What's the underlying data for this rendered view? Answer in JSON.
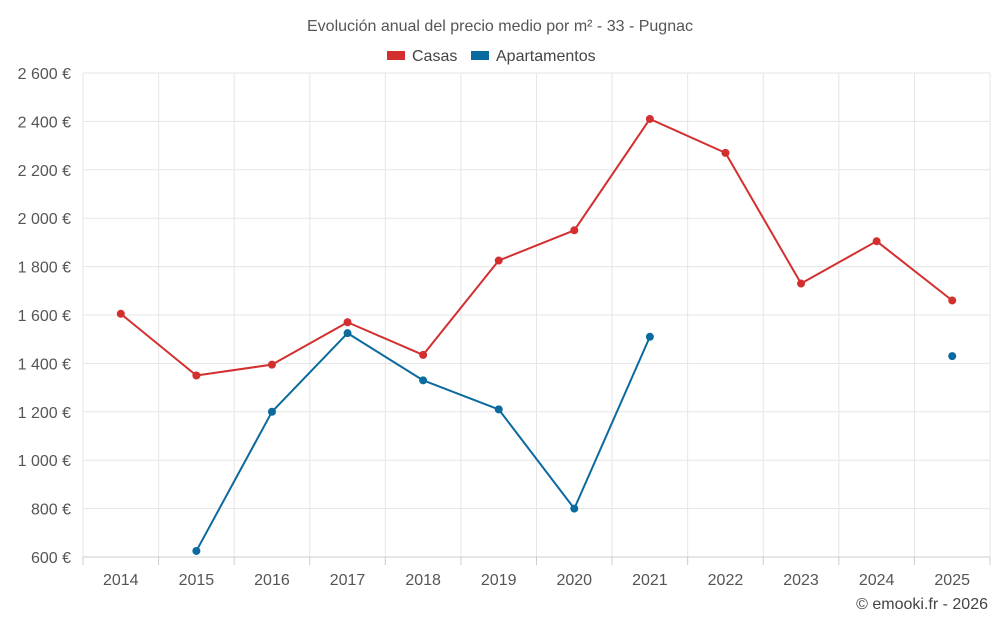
{
  "chart_data": {
    "type": "line",
    "title": "Evolución anual del precio medio por m² - 33 - Pugnac",
    "xlabel": "",
    "ylabel": "",
    "categories": [
      "2014",
      "2015",
      "2016",
      "2017",
      "2018",
      "2019",
      "2020",
      "2021",
      "2022",
      "2023",
      "2024",
      "2025"
    ],
    "ylim": [
      600,
      2600
    ],
    "yticks": [
      600,
      800,
      1000,
      1200,
      1400,
      1600,
      1800,
      2000,
      2200,
      2400,
      2600
    ],
    "ytick_labels": [
      "600 €",
      "800 €",
      "1 000 €",
      "1 200 €",
      "1 400 €",
      "1 600 €",
      "1 800 €",
      "2 000 €",
      "2 200 €",
      "2 400 €",
      "2 600 €"
    ],
    "legend_position": "top-center",
    "grid": true,
    "series": [
      {
        "name": "Casas",
        "color": "#d32f2f",
        "values": [
          1605,
          1350,
          1395,
          1570,
          1435,
          1825,
          1950,
          2410,
          2270,
          1730,
          1905,
          1660
        ]
      },
      {
        "name": "Apartamentos",
        "color": "#0b6a9e",
        "values": [
          null,
          625,
          1200,
          1525,
          1330,
          1210,
          800,
          1510,
          null,
          null,
          null,
          1430
        ]
      }
    ],
    "credit": "© emooki.fr - 2026"
  }
}
